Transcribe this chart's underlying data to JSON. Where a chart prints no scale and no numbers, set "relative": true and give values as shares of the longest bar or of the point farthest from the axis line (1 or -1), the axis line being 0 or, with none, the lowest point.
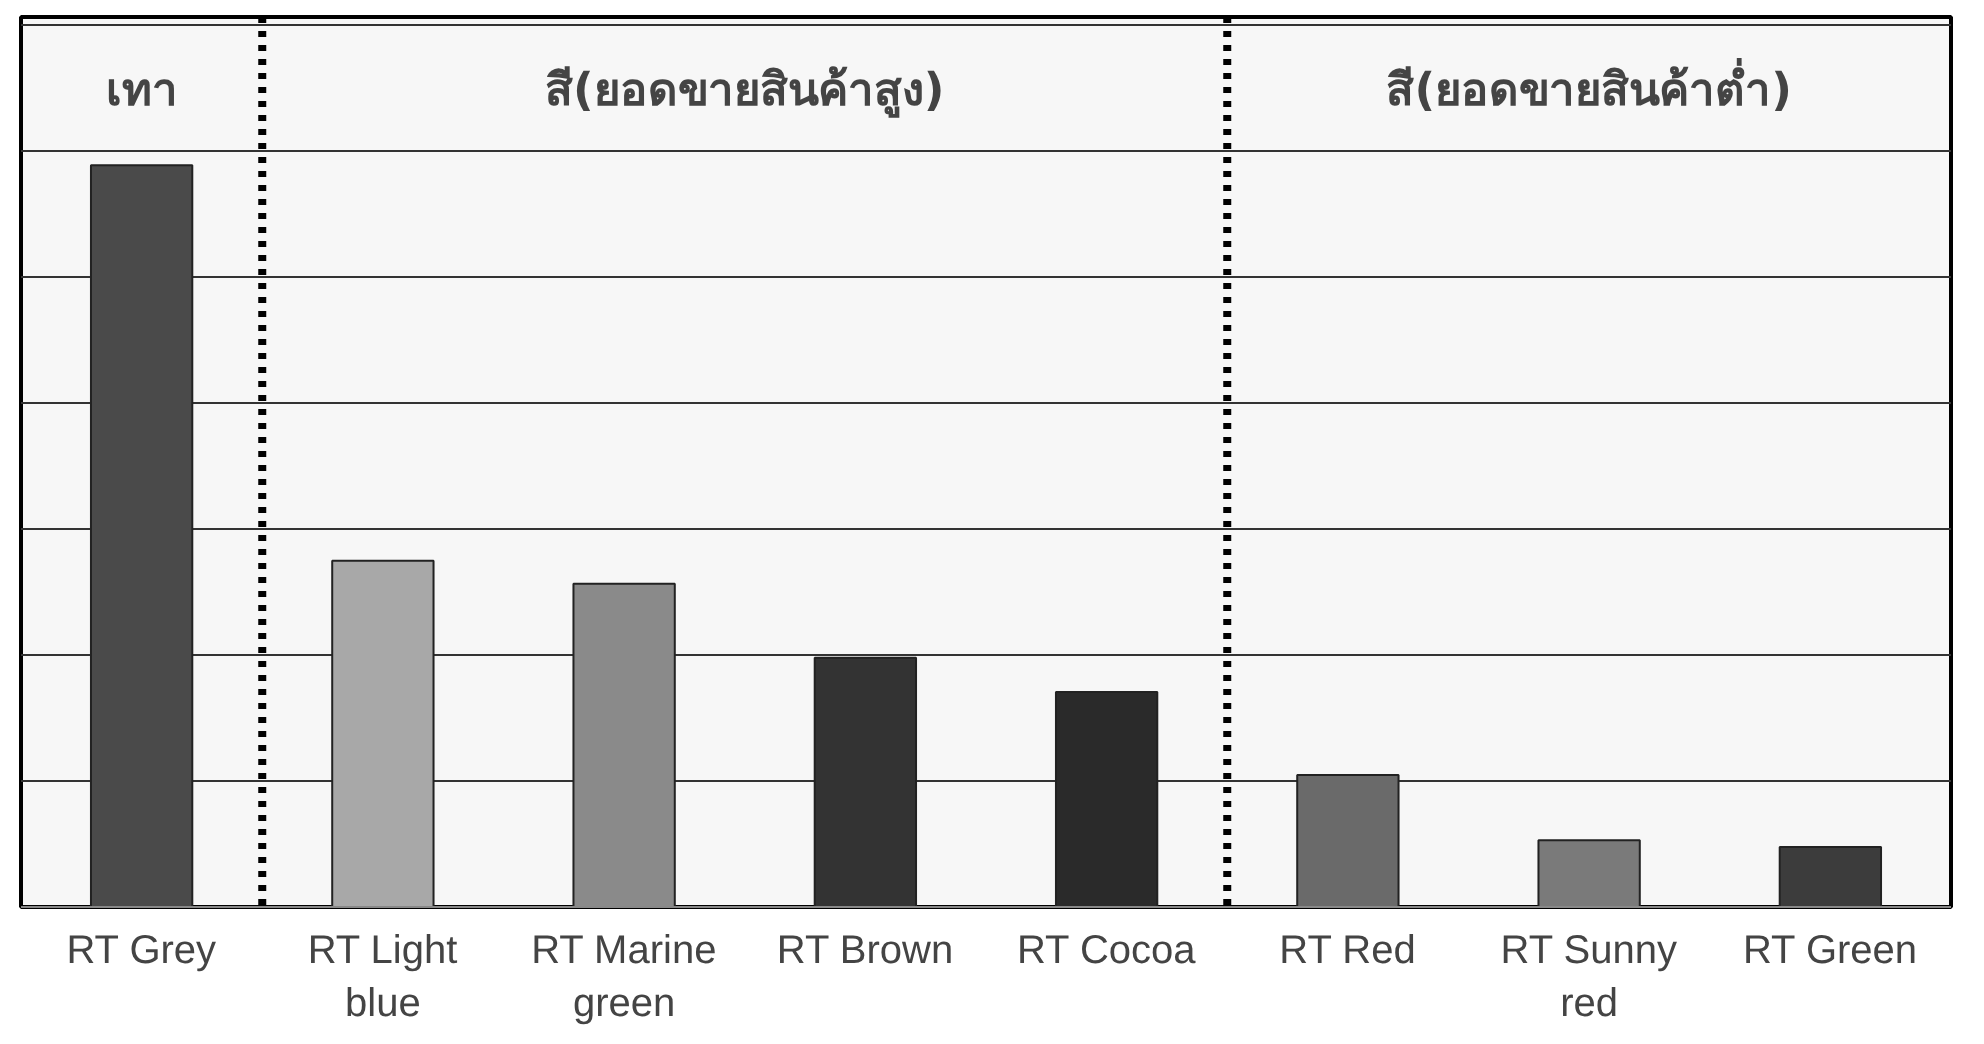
{
  "chart_data": {
    "type": "bar",
    "relative": true,
    "grid": "y",
    "categories": [
      "RT Grey",
      "RT Light blue",
      "RT Marine green",
      "RT Brown",
      "RT Cocoa",
      "RT Red",
      "RT Sunny red",
      "RT Green"
    ],
    "values": [
      1,
      0.467,
      0.436,
      0.336,
      0.29,
      0.178,
      0.09,
      0.081
    ],
    "colors": [
      "#4a4a4a",
      "#a8a8a8",
      "#8a8a8a",
      "#333333",
      "#2a2a2a",
      "#6a6a6a",
      "#7a7a7a",
      "#3c3c3c"
    ],
    "annotations": [
      "เทา",
      "สี(ยอดขายสินค้าสูง)",
      "สี(ยอดขายสินค้าต่ำ)"
    ]
  }
}
